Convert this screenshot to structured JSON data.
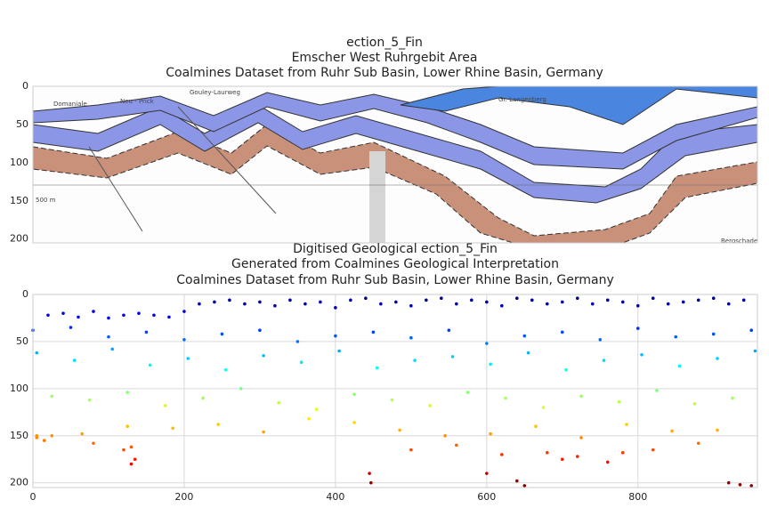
{
  "chart_data": [
    {
      "type": "image",
      "title": [
        "ection_5_Fin",
        "Emscher West Ruhrgebit Area",
        "Coalmines Dataset from Ruhr Sub Basin, Lower Rhine Basin, Germany"
      ],
      "labels": [
        "Domaniale",
        "Neu - Prick",
        "Gouley-Laurweg",
        "500 m",
        "Gr. Langenberg",
        "Bergschaden"
      ],
      "ylim": [
        205,
        0
      ],
      "yticks": [
        0,
        50,
        100,
        150,
        200
      ],
      "grid": true
    },
    {
      "type": "scatter",
      "title": [
        "Digitised Geological ection_5_Fin",
        "Generated from Coalmines Geological Interpretation",
        "Coalmines Dataset from Ruhr Sub Basin, Lower Rhine Basin, Germany"
      ],
      "xlim": [
        0,
        958
      ],
      "ylim": [
        205,
        0
      ],
      "xticks": [
        0,
        200,
        400,
        600,
        800
      ],
      "yticks": [
        0,
        50,
        100,
        150,
        200
      ],
      "grid": true,
      "colormap": "jet",
      "x": [
        20,
        40,
        60,
        80,
        100,
        120,
        140,
        160,
        180,
        200,
        220,
        240,
        260,
        280,
        300,
        320,
        340,
        360,
        380,
        400,
        420,
        440,
        460,
        480,
        500,
        520,
        540,
        560,
        580,
        600,
        620,
        640,
        660,
        680,
        700,
        720,
        740,
        760,
        780,
        800,
        820,
        840,
        860,
        880,
        900,
        920,
        940,
        0,
        50,
        100,
        150,
        200,
        250,
        300,
        350,
        400,
        450,
        500,
        550,
        600,
        650,
        700,
        750,
        800,
        850,
        900,
        950,
        5,
        55,
        105,
        155,
        205,
        255,
        305,
        355,
        405,
        455,
        505,
        555,
        605,
        655,
        705,
        755,
        805,
        855,
        905,
        955,
        25,
        75,
        125,
        175,
        225,
        275,
        325,
        375,
        425,
        475,
        525,
        575,
        625,
        675,
        725,
        775,
        825,
        875,
        925,
        5,
        65,
        125,
        185,
        245,
        305,
        365,
        425,
        485,
        545,
        605,
        665,
        725,
        785,
        845,
        905,
        5,
        15,
        25,
        80,
        120,
        130,
        500,
        560,
        620,
        680,
        700,
        720,
        760,
        780,
        820,
        880,
        130,
        135,
        445,
        447,
        600,
        640,
        650,
        920,
        935,
        950
      ],
      "y": [
        22,
        20,
        24,
        18,
        25,
        22,
        20,
        22,
        24,
        18,
        10,
        8,
        6,
        10,
        8,
        12,
        6,
        10,
        8,
        14,
        6,
        4,
        10,
        8,
        12,
        6,
        4,
        10,
        6,
        8,
        12,
        4,
        6,
        10,
        8,
        4,
        10,
        6,
        8,
        12,
        4,
        10,
        8,
        6,
        4,
        10,
        6,
        38,
        35,
        45,
        40,
        48,
        42,
        38,
        50,
        44,
        40,
        46,
        38,
        52,
        44,
        40,
        48,
        36,
        45,
        42,
        38,
        62,
        70,
        58,
        75,
        68,
        80,
        65,
        72,
        60,
        78,
        70,
        66,
        74,
        62,
        80,
        70,
        64,
        76,
        68,
        60,
        108,
        112,
        104,
        118,
        110,
        100,
        115,
        122,
        106,
        112,
        118,
        104,
        110,
        120,
        108,
        114,
        102,
        116,
        110,
        150,
        148,
        140,
        142,
        138,
        146,
        132,
        136,
        144,
        150,
        148,
        140,
        152,
        138,
        145,
        144,
        152,
        155,
        150,
        158,
        165,
        162,
        165,
        160,
        170,
        168,
        175,
        172,
        178,
        168,
        165,
        158,
        180,
        175,
        190,
        200,
        190,
        198,
        203,
        200,
        202,
        203
      ]
    }
  ]
}
